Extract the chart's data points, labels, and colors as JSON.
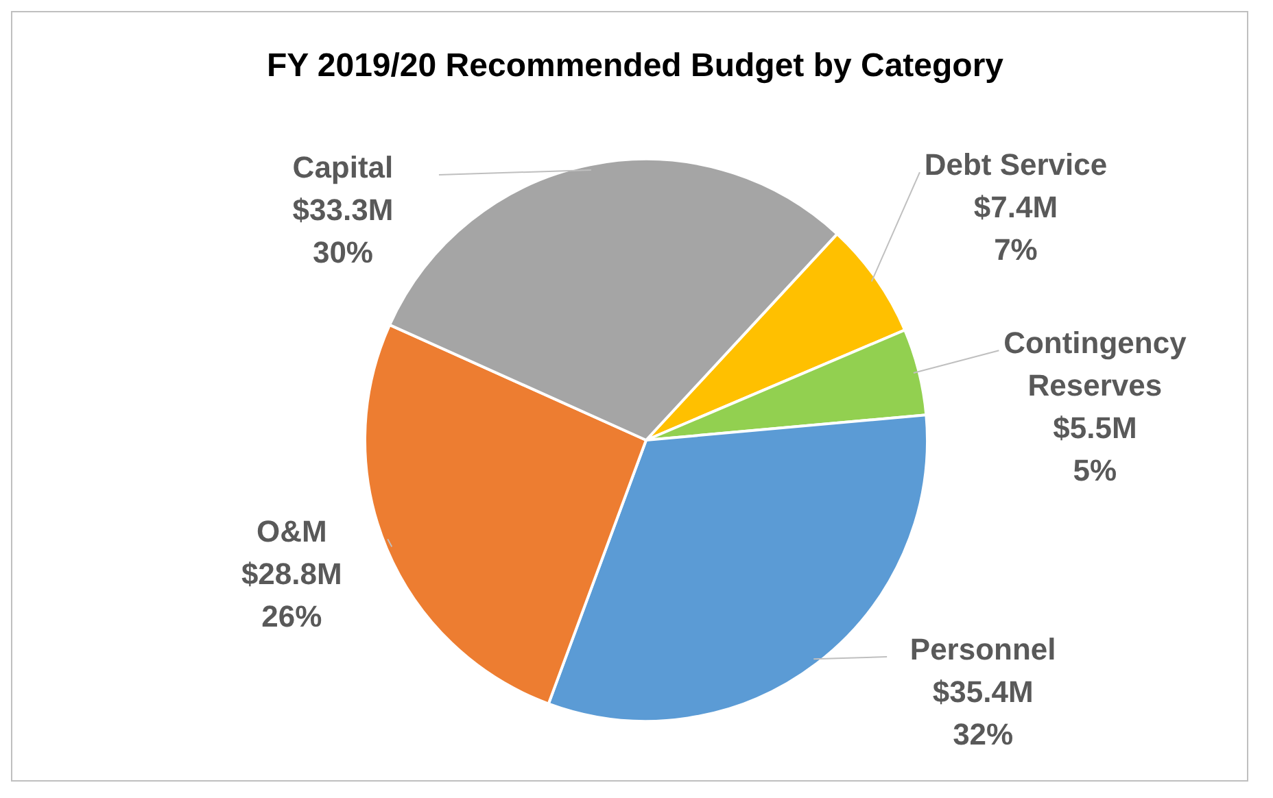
{
  "chart_data": {
    "type": "pie",
    "title": "FY 2019/20 Recommended Budget by Category",
    "categories": [
      "Debt Service",
      "Contingency Reserves",
      "Personnel",
      "O&M",
      "Capital"
    ],
    "values": [
      7.4,
      5.5,
      35.4,
      28.8,
      33.3
    ],
    "colors": [
      "#ffc000",
      "#92d050",
      "#5b9bd5",
      "#ed7d31",
      "#a5a5a5"
    ],
    "value_labels": [
      "$7.4M",
      "$5.5M",
      "$35.4M",
      "$28.8M",
      "$33.3M"
    ],
    "annotations": [
      "7%",
      "5%",
      "32%",
      "26%",
      "30%"
    ],
    "legend": false
  }
}
